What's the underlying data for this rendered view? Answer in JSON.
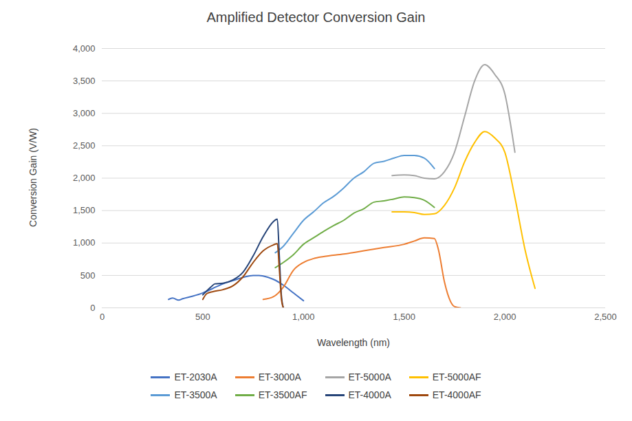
{
  "chart_data": {
    "type": "line",
    "title": "Amplified Detector Conversion Gain",
    "x_label": "Wavelength (nm)",
    "y_label": "Conversion Gain (V/W)",
    "xlim": [
      0,
      2500
    ],
    "xticks": [
      0,
      500,
      1000,
      1500,
      2000,
      2500
    ],
    "ylim": [
      0,
      4000
    ],
    "yticks": [
      0,
      500,
      1000,
      1500,
      2000,
      2500,
      3000,
      3500,
      4000
    ],
    "grid": true,
    "legend": "bottom",
    "series": [
      {
        "name": "ET-2030A",
        "color": "#4472c4",
        "x": [
          330,
          350,
          380,
          400,
          450,
          500,
          550,
          600,
          650,
          700,
          750,
          780,
          800,
          850,
          900,
          950,
          1000
        ],
        "values": [
          130,
          150,
          120,
          140,
          180,
          230,
          300,
          370,
          420,
          470,
          500,
          500,
          490,
          440,
          350,
          230,
          110
        ]
      },
      {
        "name": "ET-3000A",
        "color": "#ed7d31",
        "x": [
          800,
          850,
          900,
          950,
          1000,
          1050,
          1100,
          1200,
          1300,
          1400,
          1500,
          1550,
          1600,
          1650,
          1670,
          1700,
          1730,
          1750,
          1780
        ],
        "values": [
          130,
          170,
          320,
          580,
          700,
          760,
          790,
          830,
          880,
          930,
          980,
          1030,
          1080,
          1070,
          900,
          400,
          100,
          20,
          0
        ]
      },
      {
        "name": "ET-5000A",
        "color": "#a5a5a5",
        "x": [
          1440,
          1500,
          1550,
          1600,
          1650,
          1700,
          1750,
          1800,
          1850,
          1900,
          1950,
          2000,
          2030,
          2050
        ],
        "values": [
          2040,
          2050,
          2040,
          2000,
          1990,
          2100,
          2400,
          2950,
          3500,
          3750,
          3600,
          3300,
          2800,
          2400
        ]
      },
      {
        "name": "ET-5000AF",
        "color": "#ffc000",
        "x": [
          1440,
          1500,
          1550,
          1600,
          1650,
          1700,
          1750,
          1800,
          1850,
          1900,
          1950,
          2000,
          2050,
          2100,
          2150
        ],
        "values": [
          1480,
          1480,
          1470,
          1440,
          1450,
          1580,
          1850,
          2250,
          2550,
          2720,
          2620,
          2400,
          1700,
          900,
          300
        ]
      },
      {
        "name": "ET-3500A",
        "color": "#5b9bd5",
        "x": [
          860,
          900,
          950,
          1000,
          1050,
          1100,
          1150,
          1200,
          1250,
          1300,
          1350,
          1400,
          1450,
          1500,
          1550,
          1600,
          1650
        ],
        "values": [
          850,
          950,
          1150,
          1350,
          1480,
          1620,
          1720,
          1850,
          2000,
          2100,
          2230,
          2260,
          2310,
          2350,
          2350,
          2310,
          2150
        ]
      },
      {
        "name": "ET-3500AF",
        "color": "#70ad47",
        "x": [
          860,
          900,
          950,
          1000,
          1050,
          1100,
          1150,
          1200,
          1250,
          1300,
          1350,
          1400,
          1450,
          1500,
          1550,
          1600,
          1650
        ],
        "values": [
          620,
          700,
          820,
          980,
          1080,
          1180,
          1270,
          1350,
          1460,
          1530,
          1630,
          1650,
          1680,
          1710,
          1700,
          1660,
          1550
        ]
      },
      {
        "name": "ET-4000A",
        "color": "#264478",
        "x": [
          500,
          540,
          560,
          600,
          650,
          700,
          750,
          800,
          850,
          870,
          880,
          890,
          900
        ],
        "values": [
          200,
          320,
          370,
          380,
          430,
          550,
          800,
          1100,
          1330,
          1370,
          800,
          200,
          0
        ]
      },
      {
        "name": "ET-4000AF",
        "color": "#9e480e",
        "x": [
          500,
          520,
          550,
          600,
          650,
          700,
          750,
          800,
          850,
          870,
          880,
          890,
          900
        ],
        "values": [
          130,
          220,
          250,
          280,
          340,
          480,
          700,
          880,
          970,
          990,
          600,
          150,
          0
        ]
      }
    ]
  }
}
